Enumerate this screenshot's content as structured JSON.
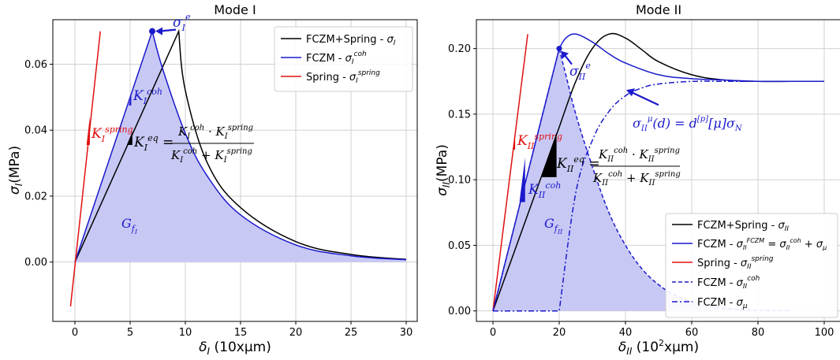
{
  "chart_data": [
    {
      "type": "line",
      "title": "Mode I",
      "xlabel": "δ_I (10xμm)",
      "ylabel": "σ_I(MPa)",
      "xlim": [
        -2,
        31
      ],
      "ylim": [
        -0.018,
        0.0735
      ],
      "xticks": [
        "0",
        "5",
        "10",
        "15",
        "20",
        "25",
        "30"
      ],
      "yticks": [
        "0.00",
        "0.02",
        "0.04",
        "0.06"
      ],
      "grid": true,
      "legend_position": "top-right",
      "legend": [
        "FCZM+Spring - σ_I",
        "FCZM - σ_I^coh",
        "Spring - σ_I^spring"
      ],
      "series": [
        {
          "name": "FCZM+Spring - σ_I",
          "color": "#000000",
          "style": "solid",
          "x": [
            0,
            9.4,
            10,
            12,
            15,
            20,
            25,
            30
          ],
          "y": [
            0,
            0.07,
            0.052,
            0.03,
            0.0165,
            0.0062,
            0.0023,
            0.0008
          ]
        },
        {
          "name": "FCZM - σ_I^coh",
          "color": "#1a1acc",
          "style": "solid",
          "fill": "#c8c8f5",
          "x": [
            0,
            7,
            8,
            10,
            12,
            15,
            20,
            25,
            30
          ],
          "y": [
            0,
            0.07,
            0.058,
            0.039,
            0.026,
            0.0143,
            0.0052,
            0.0019,
            0.0007
          ]
        },
        {
          "name": "Spring - σ_I^spring",
          "color": "#e01010",
          "style": "solid",
          "x": [
            -0.4,
            2.3
          ],
          "y": [
            -0.0135,
            0.07
          ]
        }
      ],
      "annotations": {
        "peak": "σ_I^e",
        "k_coh": "K_I^coh",
        "k_spring": "K_I^spring",
        "k_eq": "K_I^eq",
        "eq_rhs_num": "K_I^coh · K_I^spring",
        "eq_rhs_den": "K_I^coh + K_I^spring",
        "gf": "G_f_I"
      }
    },
    {
      "type": "line",
      "title": "Mode II",
      "xlabel": "δ_II (10²xμm)",
      "ylabel": "σ_II(MPa)",
      "xlim": [
        -5,
        105
      ],
      "ylim": [
        -0.008,
        0.222
      ],
      "xticks": [
        "0",
        "20",
        "40",
        "60",
        "80",
        "100"
      ],
      "yticks": [
        "0.00",
        "0.05",
        "0.10",
        "0.15",
        "0.20"
      ],
      "grid": true,
      "legend_position": "bottom-right",
      "legend": [
        "FCZM+Spring - σ_II",
        "FCZM - σ_II^FCZM = σ_II^coh + σ_μ",
        "Spring - σ_II^spring",
        "FCZM - σ_II^coh",
        "FCZM - σ_μ"
      ],
      "series": [
        {
          "name": "FCZM+Spring - σ_II",
          "color": "#000000",
          "style": "solid",
          "x": [
            0,
            20,
            25,
            30,
            35,
            40,
            45,
            50,
            60,
            70,
            80,
            90,
            100
          ],
          "y": [
            0,
            0.14,
            0.175,
            0.2,
            0.211,
            0.208,
            0.199,
            0.19,
            0.18,
            0.176,
            0.175,
            0.175,
            0.175
          ]
        },
        {
          "name": "FCZM - σ_II^FCZM = σ_II^coh + σ_μ",
          "color": "#1a1acc",
          "style": "solid",
          "x": [
            0,
            20,
            22,
            25,
            30,
            35,
            40,
            50,
            60,
            70,
            80,
            90,
            100
          ],
          "y": [
            0,
            0.2,
            0.208,
            0.211,
            0.205,
            0.196,
            0.189,
            0.18,
            0.177,
            0.176,
            0.175,
            0.175,
            0.175
          ]
        },
        {
          "name": "Spring - σ_II^spring",
          "color": "#e01010",
          "style": "solid",
          "x": [
            0,
            10.5
          ],
          "y": [
            0,
            0.211
          ]
        },
        {
          "name": "FCZM - σ_II^coh",
          "color": "#1a1acc",
          "style": "dashed",
          "fill": "#c8c8f5",
          "x": [
            0,
            20,
            22,
            25,
            30,
            35,
            40,
            45,
            50,
            55,
            60,
            70,
            80,
            90
          ],
          "y": [
            0,
            0.2,
            0.18,
            0.15,
            0.11,
            0.075,
            0.05,
            0.032,
            0.02,
            0.012,
            0.007,
            0.002,
            0.0005,
            0.0001
          ]
        },
        {
          "name": "FCZM - σ_μ",
          "color": "#1a1acc",
          "style": "dashdot",
          "x": [
            0,
            20,
            20,
            25,
            30,
            35,
            40,
            45,
            50,
            60,
            70,
            80,
            91
          ],
          "y": [
            0,
            0,
            0,
            0.09,
            0.13,
            0.152,
            0.164,
            0.17,
            0.173,
            0.175,
            0.175,
            0.175,
            0.175
          ]
        }
      ],
      "annotations": {
        "peak": "σ_II^e",
        "mu_eq": "σ_II^μ(d) = d^[p][μ]σ_N",
        "k_coh": "K_II^coh",
        "k_spring": "K_II^spring",
        "k_eq": "K_II^eq",
        "eq_rhs_num": "K_II^coh · K_II^spring",
        "eq_rhs_den": "K_II^coh + K_II^spring",
        "gf": "G_f_II"
      }
    }
  ]
}
